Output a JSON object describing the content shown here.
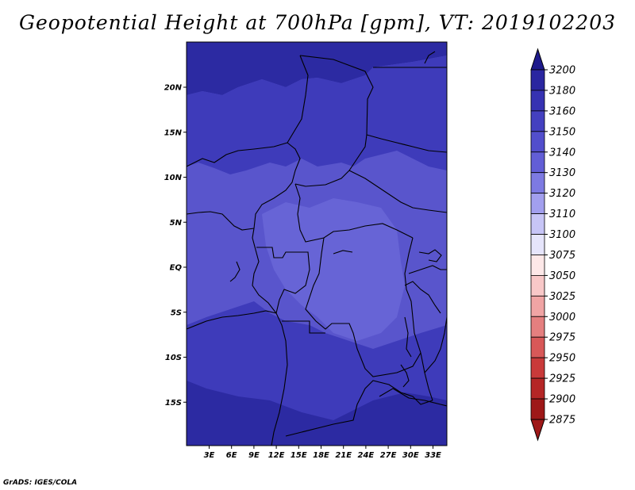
{
  "title": "Geopotential Height at 700hPa [gpm], VT: 2019102203",
  "credit": "GrADS: IGES/COLA",
  "map": {
    "lat_ticks": [
      {
        "label": "20N",
        "lat": 20
      },
      {
        "label": "15N",
        "lat": 15
      },
      {
        "label": "10N",
        "lat": 10
      },
      {
        "label": "5N",
        "lat": 5
      },
      {
        "label": "EQ",
        "lat": 0
      },
      {
        "label": "5S",
        "lat": -5
      },
      {
        "label": "10S",
        "lat": -10
      },
      {
        "label": "15S",
        "lat": -15
      }
    ],
    "lon_ticks": [
      {
        "label": "3E",
        "lon": 3
      },
      {
        "label": "6E",
        "lon": 6
      },
      {
        "label": "9E",
        "lon": 9
      },
      {
        "label": "12E",
        "lon": 12
      },
      {
        "label": "15E",
        "lon": 15
      },
      {
        "label": "18E",
        "lon": 18
      },
      {
        "label": "21E",
        "lon": 21
      },
      {
        "label": "24E",
        "lon": 24
      },
      {
        "label": "27E",
        "lon": 27
      },
      {
        "label": "30E",
        "lon": 30
      },
      {
        "label": "33E",
        "lon": 33
      }
    ]
  },
  "colorbar": {
    "levels": [
      "3200",
      "3180",
      "3160",
      "3150",
      "3140",
      "3130",
      "3120",
      "3110",
      "3100",
      "3075",
      "3050",
      "3025",
      "3000",
      "2975",
      "2950",
      "2925",
      "2900",
      "2875"
    ],
    "colors": [
      "#1e1a8c",
      "#2a26a0",
      "#3632b2",
      "#4440c0",
      "#524ecc",
      "#625ed6",
      "#7d7ae2",
      "#a29fee",
      "#c7c5f6",
      "#e6e5fb",
      "#fde8e8",
      "#f8c8c8",
      "#f0a4a4",
      "#e57f7f",
      "#d85858",
      "#c93a3a",
      "#b52626",
      "#9e1818"
    ]
  },
  "colors": {
    "deep": "#2c2aa2",
    "mid": "#3e3bba",
    "light": "#5955cc",
    "lighter": "#6764d6",
    "border": "#000000"
  }
}
